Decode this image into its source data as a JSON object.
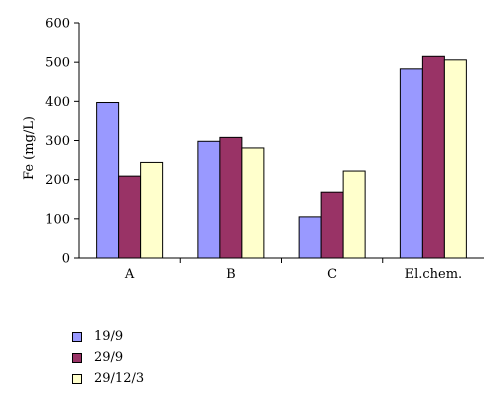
{
  "chart_data": {
    "type": "bar",
    "categories": [
      "A",
      "B",
      "C",
      "El.chem."
    ],
    "series": [
      {
        "name": "19/9",
        "color": "#9999ff",
        "values": [
          397,
          298,
          105,
          483
        ]
      },
      {
        "name": "29/9",
        "color": "#993366",
        "values": [
          209,
          308,
          168,
          515
        ]
      },
      {
        "name": "29/12/3",
        "color": "#ffffcc",
        "values": [
          244,
          281,
          222,
          506
        ]
      }
    ],
    "ylabel": "Fe (mg/L)",
    "ylim": [
      0,
      600
    ],
    "yticks": [
      0,
      100,
      200,
      300,
      400,
      500,
      600
    ],
    "grid": false,
    "legend_position": "bottom-left"
  }
}
